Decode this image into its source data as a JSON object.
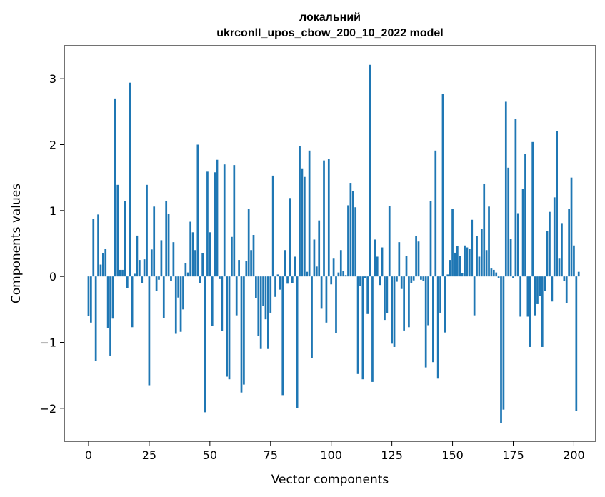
{
  "chart_data": {
    "type": "bar",
    "title_line1": "локальний",
    "title_line2": "ukrconll_upos_cbow_200_10_2022 model",
    "xlabel": "Vector components",
    "ylabel": "Components values",
    "xlim": [
      -10,
      209
    ],
    "ylim": [
      -2.5,
      3.5
    ],
    "xticks": [
      0,
      25,
      50,
      75,
      100,
      125,
      150,
      175,
      200
    ],
    "xtick_labels": [
      "0",
      "25",
      "50",
      "75",
      "100",
      "125",
      "150",
      "175",
      "200"
    ],
    "yticks": [
      -2,
      -1,
      0,
      1,
      2,
      3
    ],
    "ytick_labels": [
      "−2",
      "−1",
      "0",
      "1",
      "2",
      "3"
    ],
    "bar_color": "#1f77b4",
    "grid": false,
    "values": [
      -0.6,
      -0.7,
      0.87,
      -1.28,
      0.94,
      0.18,
      0.35,
      0.42,
      -0.78,
      -1.2,
      -0.64,
      2.7,
      1.39,
      0.1,
      0.1,
      1.14,
      -0.18,
      2.94,
      -0.77,
      0.04,
      0.62,
      0.25,
      -0.1,
      0.26,
      1.39,
      -1.65,
      0.41,
      1.06,
      -0.22,
      -0.05,
      0.55,
      -0.63,
      1.15,
      0.95,
      -0.07,
      0.52,
      -0.87,
      -0.32,
      -0.84,
      -0.5,
      0.2,
      0.06,
      0.83,
      0.67,
      0.4,
      2.0,
      -0.1,
      0.35,
      -2.06,
      1.59,
      0.67,
      -0.75,
      1.58,
      1.77,
      -0.04,
      -0.83,
      1.7,
      -1.52,
      -1.56,
      0.6,
      1.69,
      -0.59,
      0.25,
      -1.76,
      -1.64,
      0.24,
      1.02,
      0.4,
      0.63,
      -0.33,
      -0.9,
      -1.1,
      -0.45,
      -0.65,
      -1.1,
      -0.55,
      1.53,
      -0.31,
      0.03,
      -0.2,
      -1.8,
      0.4,
      -0.11,
      1.19,
      -0.1,
      0.3,
      -2.0,
      1.98,
      1.64,
      1.51,
      0.07,
      1.91,
      -1.24,
      0.56,
      0.15,
      0.85,
      -0.49,
      1.76,
      -0.7,
      1.78,
      -0.12,
      0.27,
      -0.86,
      0.06,
      0.4,
      0.08,
      0.02,
      1.08,
      1.42,
      1.3,
      1.05,
      -1.48,
      -0.15,
      -1.56,
      -0.02,
      -0.57,
      3.21,
      -1.6,
      0.56,
      0.3,
      -0.13,
      0.44,
      -0.66,
      -0.56,
      1.07,
      -1.02,
      -1.07,
      -0.08,
      0.52,
      -0.19,
      -0.82,
      0.31,
      -0.77,
      -0.1,
      -0.06,
      0.61,
      0.53,
      -0.05,
      -0.07,
      -1.38,
      -0.74,
      1.14,
      -1.3,
      1.91,
      -1.55,
      -0.55,
      2.77,
      -0.85,
      0.03,
      0.25,
      1.03,
      0.36,
      0.46,
      0.31,
      0.05,
      0.47,
      0.44,
      0.42,
      0.86,
      -0.59,
      0.61,
      0.3,
      0.72,
      1.41,
      0.4,
      1.06,
      0.12,
      0.1,
      0.06,
      -0.03,
      -2.22,
      -2.02,
      2.65,
      1.65,
      0.57,
      -0.03,
      2.39,
      0.96,
      -0.61,
      1.33,
      1.86,
      -0.61,
      -1.07,
      2.04,
      -0.59,
      -0.42,
      -0.3,
      -1.07,
      -0.22,
      0.69,
      0.98,
      -0.38,
      1.2,
      2.21,
      0.27,
      0.81,
      -0.07,
      -0.4,
      1.03,
      1.5,
      0.47,
      -2.04,
      0.07
    ]
  }
}
